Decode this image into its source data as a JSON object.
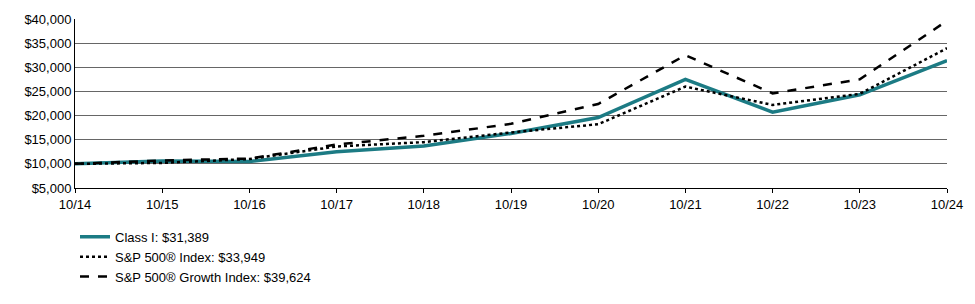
{
  "chart_data": {
    "type": "line",
    "categories": [
      "10/14",
      "10/15",
      "10/16",
      "10/17",
      "10/18",
      "10/19",
      "10/20",
      "10/21",
      "10/22",
      "10/23",
      "10/24"
    ],
    "series": [
      {
        "name": "Class I: $31,389",
        "color": "#1c7b84",
        "line_style": "solid",
        "values": [
          10000,
          10600,
          10500,
          12500,
          13700,
          16300,
          19600,
          27500,
          20700,
          24300,
          31389
        ]
      },
      {
        "name": "S&P 500® Index: $33,949",
        "color": "#000000",
        "line_style": "dot",
        "values": [
          10000,
          10200,
          11000,
          13600,
          14500,
          16500,
          18200,
          26000,
          22200,
          24500,
          33949
        ]
      },
      {
        "name": "S&P 500® Growth Index: $39,624",
        "color": "#000000",
        "line_style": "dash",
        "values": [
          10000,
          10700,
          11100,
          14000,
          15800,
          18300,
          22400,
          32500,
          24600,
          27500,
          39624
        ]
      }
    ],
    "ylim": [
      5000,
      40000
    ],
    "yticks": [
      {
        "value": 5000,
        "label": "$5,000"
      },
      {
        "value": 10000,
        "label": "$10,000"
      },
      {
        "value": 15000,
        "label": "$15,000"
      },
      {
        "value": 20000,
        "label": "$20,000"
      },
      {
        "value": 25000,
        "label": "$25,000"
      },
      {
        "value": 30000,
        "label": "$30,000"
      },
      {
        "value": 35000,
        "label": "$35,000"
      },
      {
        "value": 40000,
        "label": "$40,000"
      }
    ],
    "grid": true,
    "legend": "bottom"
  }
}
